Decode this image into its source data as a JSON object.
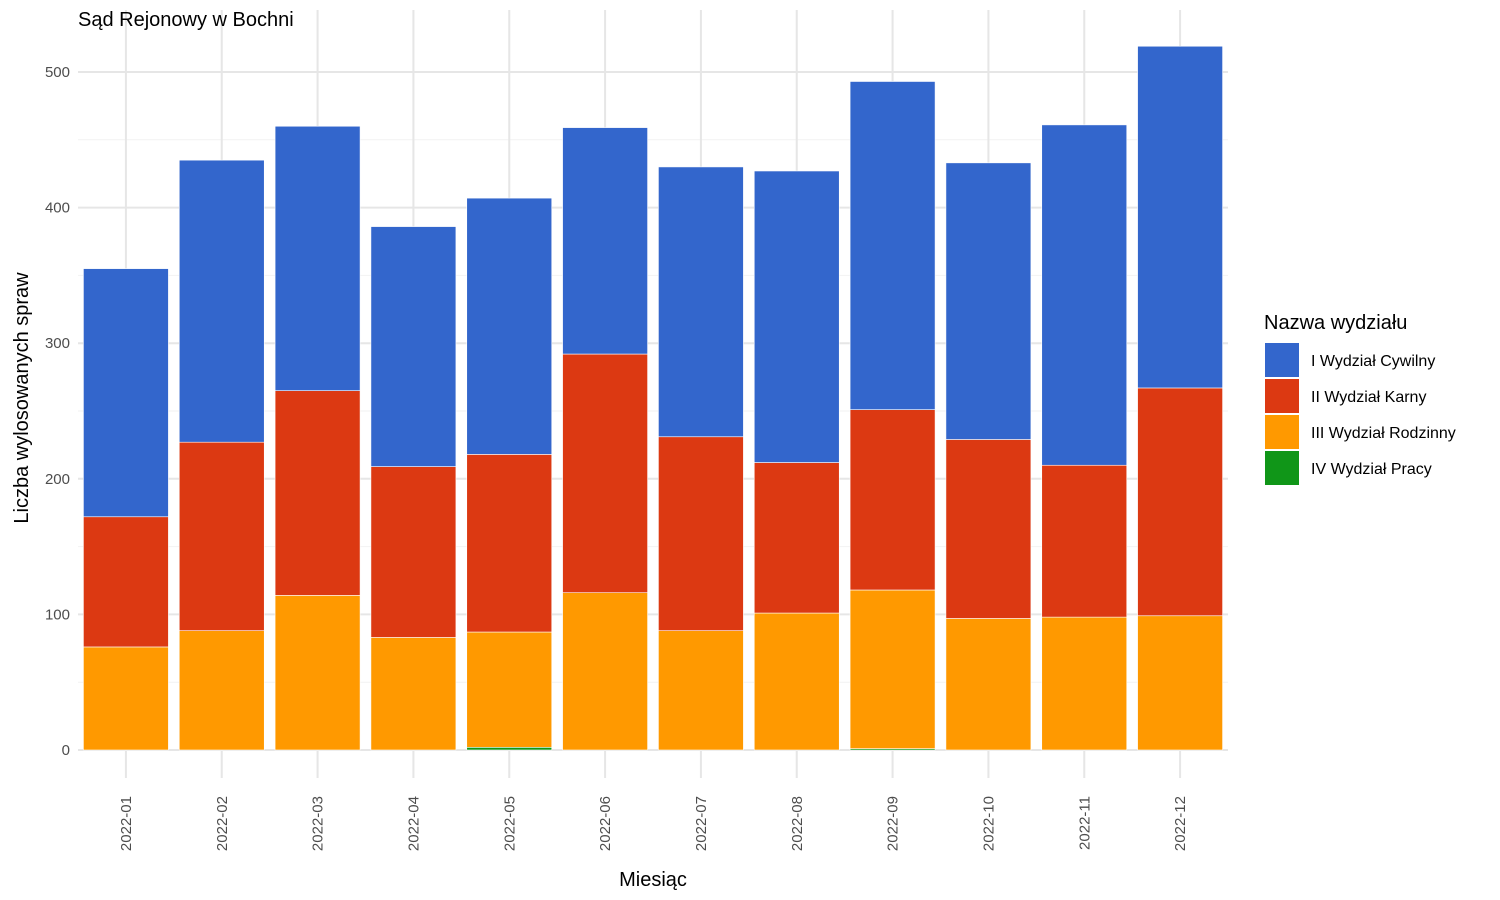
{
  "chart_data": {
    "type": "bar",
    "stacked": true,
    "title": "Sąd Rejonowy w Bochni",
    "xlabel": "Miesiąc",
    "ylabel": "Liczba wylosowanych spraw",
    "ylim": [
      0,
      530
    ],
    "yticks": [
      0,
      100,
      200,
      300,
      400,
      500
    ],
    "grid": true,
    "legend_title": "Nazwa wydziału",
    "legend_position": "right",
    "categories": [
      "2022-01",
      "2022-02",
      "2022-03",
      "2022-04",
      "2022-05",
      "2022-06",
      "2022-07",
      "2022-08",
      "2022-09",
      "2022-10",
      "2022-11",
      "2022-12"
    ],
    "series": [
      {
        "name": "I Wydział Cywilny",
        "color": "#3366CC",
        "values": [
          183,
          208,
          195,
          177,
          189,
          167,
          199,
          215,
          242,
          204,
          251,
          252
        ]
      },
      {
        "name": "II Wydział Karny",
        "color": "#DC3912",
        "values": [
          96,
          139,
          151,
          126,
          131,
          176,
          143,
          111,
          133,
          132,
          112,
          168
        ]
      },
      {
        "name": "III Wydział Rodzinny",
        "color": "#FF9900",
        "values": [
          76,
          88,
          114,
          83,
          85,
          116,
          88,
          101,
          117,
          97,
          98,
          99
        ]
      },
      {
        "name": "IV Wydział Pracy",
        "color": "#109618",
        "values": [
          0,
          0,
          0,
          0,
          2,
          0,
          0,
          0,
          1,
          0,
          0,
          0
        ]
      }
    ]
  }
}
